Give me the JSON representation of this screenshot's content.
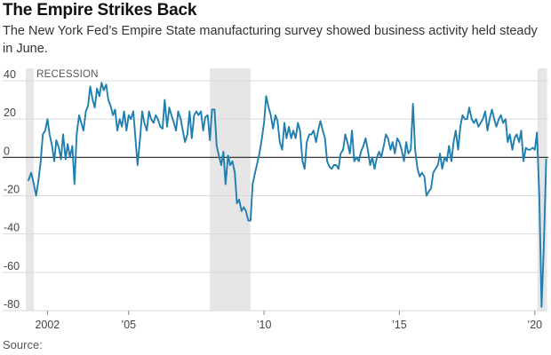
{
  "header": {
    "title": "The Empire Strikes Back",
    "subtitle": "The New York Fed’s Empire State manufacturing survey showed business activity held steady in June."
  },
  "footer": {
    "source_label": "Source:"
  },
  "chart_data": {
    "type": "line",
    "title": "The Empire Strikes Back",
    "subtitle": "The New York Fed’s Empire State manufacturing survey showed business activity held steady in June.",
    "ylim": [
      -80,
      40
    ],
    "xlim": [
      2001.2,
      2020.5
    ],
    "y_ticks": [
      40,
      20,
      0,
      -20,
      -40,
      -60,
      -80
    ],
    "y_tick_labels": [
      "40",
      "20",
      "0",
      "-20",
      "-40",
      "-60",
      "-80"
    ],
    "x_ticks": [
      2002,
      2005,
      2010,
      2015,
      2020
    ],
    "x_tick_labels": [
      "2002",
      "’05",
      "’10",
      "’15",
      "’20"
    ],
    "grid": "horizontal",
    "recession_label": "RECESSION",
    "recessions": [
      [
        2001.2,
        2001.5
      ],
      [
        2008.0,
        2009.5
      ],
      [
        2020.1,
        2020.45
      ]
    ],
    "colors": {
      "line": "#1f7fae",
      "recession": "#e6e6e6",
      "grid": "#d9d9d9",
      "zero_line": "#222222"
    },
    "series": [
      {
        "values": [
          [
            2001.3,
            -12
          ],
          [
            2001.4,
            -8
          ],
          [
            2001.5,
            -14
          ],
          [
            2001.58,
            -20
          ],
          [
            2001.67,
            -12
          ],
          [
            2001.75,
            -2
          ],
          [
            2001.83,
            12
          ],
          [
            2001.92,
            14
          ],
          [
            2002.0,
            20
          ],
          [
            2002.08,
            12
          ],
          [
            2002.17,
            6
          ],
          [
            2002.25,
            -2
          ],
          [
            2002.33,
            9
          ],
          [
            2002.42,
            5
          ],
          [
            2002.5,
            -1
          ],
          [
            2002.58,
            12
          ],
          [
            2002.67,
            -1
          ],
          [
            2002.75,
            7
          ],
          [
            2002.83,
            0
          ],
          [
            2002.92,
            6
          ],
          [
            2003.0,
            -14
          ],
          [
            2003.08,
            12
          ],
          [
            2003.17,
            22
          ],
          [
            2003.25,
            18
          ],
          [
            2003.33,
            14
          ],
          [
            2003.42,
            24
          ],
          [
            2003.5,
            27
          ],
          [
            2003.58,
            37
          ],
          [
            2003.67,
            30
          ],
          [
            2003.75,
            26
          ],
          [
            2003.83,
            36
          ],
          [
            2003.92,
            32
          ],
          [
            2004.0,
            39
          ],
          [
            2004.08,
            35
          ],
          [
            2004.17,
            38
          ],
          [
            2004.25,
            30
          ],
          [
            2004.33,
            27
          ],
          [
            2004.42,
            22
          ],
          [
            2004.5,
            25
          ],
          [
            2004.58,
            14
          ],
          [
            2004.67,
            20
          ],
          [
            2004.75,
            16
          ],
          [
            2004.83,
            24
          ],
          [
            2004.92,
            14
          ],
          [
            2005.0,
            22
          ],
          [
            2005.08,
            20
          ],
          [
            2005.17,
            24
          ],
          [
            2005.25,
            10
          ],
          [
            2005.33,
            -4
          ],
          [
            2005.42,
            10
          ],
          [
            2005.5,
            24
          ],
          [
            2005.58,
            18
          ],
          [
            2005.67,
            14
          ],
          [
            2005.75,
            24
          ],
          [
            2005.83,
            20
          ],
          [
            2005.92,
            18
          ],
          [
            2006.0,
            22
          ],
          [
            2006.08,
            20
          ],
          [
            2006.17,
            16
          ],
          [
            2006.25,
            15
          ],
          [
            2006.33,
            30
          ],
          [
            2006.42,
            16
          ],
          [
            2006.5,
            26
          ],
          [
            2006.58,
            22
          ],
          [
            2006.67,
            18
          ],
          [
            2006.75,
            14
          ],
          [
            2006.83,
            24
          ],
          [
            2006.92,
            20
          ],
          [
            2007.0,
            14
          ],
          [
            2007.08,
            8
          ],
          [
            2007.17,
            12
          ],
          [
            2007.25,
            24
          ],
          [
            2007.33,
            10
          ],
          [
            2007.42,
            22
          ],
          [
            2007.5,
            24
          ],
          [
            2007.58,
            22
          ],
          [
            2007.67,
            24
          ],
          [
            2007.75,
            14
          ],
          [
            2007.83,
            21
          ],
          [
            2007.92,
            22
          ],
          [
            2008.0,
            9
          ],
          [
            2008.08,
            25
          ],
          [
            2008.17,
            25
          ],
          [
            2008.25,
            6
          ],
          [
            2008.33,
            1
          ],
          [
            2008.42,
            -4
          ],
          [
            2008.5,
            3
          ],
          [
            2008.58,
            -14
          ],
          [
            2008.67,
            1
          ],
          [
            2008.75,
            -4
          ],
          [
            2008.83,
            -2
          ],
          [
            2008.92,
            -8
          ],
          [
            2009.0,
            -24
          ],
          [
            2009.08,
            -22
          ],
          [
            2009.17,
            -28
          ],
          [
            2009.25,
            -26
          ],
          [
            2009.33,
            -28
          ],
          [
            2009.42,
            -33
          ],
          [
            2009.5,
            -33
          ],
          [
            2009.58,
            -14
          ],
          [
            2009.67,
            -8
          ],
          [
            2009.75,
            -3
          ],
          [
            2009.83,
            2
          ],
          [
            2009.92,
            10
          ],
          [
            2010.0,
            18
          ],
          [
            2010.08,
            32
          ],
          [
            2010.17,
            26
          ],
          [
            2010.25,
            22
          ],
          [
            2010.33,
            15
          ],
          [
            2010.42,
            22
          ],
          [
            2010.5,
            19
          ],
          [
            2010.58,
            8
          ],
          [
            2010.67,
            4
          ],
          [
            2010.75,
            18
          ],
          [
            2010.83,
            10
          ],
          [
            2010.92,
            16
          ],
          [
            2011.0,
            10
          ],
          [
            2011.08,
            14
          ],
          [
            2011.17,
            10
          ],
          [
            2011.25,
            18
          ],
          [
            2011.33,
            14
          ],
          [
            2011.42,
            -2
          ],
          [
            2011.5,
            -6
          ],
          [
            2011.58,
            8
          ],
          [
            2011.67,
            12
          ],
          [
            2011.75,
            12
          ],
          [
            2011.83,
            14
          ],
          [
            2011.92,
            8
          ],
          [
            2012.0,
            14
          ],
          [
            2012.08,
            19
          ],
          [
            2012.17,
            14
          ],
          [
            2012.25,
            10
          ],
          [
            2012.33,
            -2
          ],
          [
            2012.42,
            -5
          ],
          [
            2012.5,
            -6
          ],
          [
            2012.58,
            -4
          ],
          [
            2012.67,
            -4
          ],
          [
            2012.75,
            -6
          ],
          [
            2012.83,
            2
          ],
          [
            2012.92,
            4
          ],
          [
            2013.0,
            12
          ],
          [
            2013.08,
            8
          ],
          [
            2013.17,
            2
          ],
          [
            2013.25,
            14
          ],
          [
            2013.33,
            -2
          ],
          [
            2013.42,
            0
          ],
          [
            2013.5,
            -2
          ],
          [
            2013.58,
            3
          ],
          [
            2013.67,
            6
          ],
          [
            2013.75,
            10
          ],
          [
            2013.83,
            4
          ],
          [
            2013.92,
            -4
          ],
          [
            2014.0,
            0
          ],
          [
            2014.08,
            -6
          ],
          [
            2014.17,
            0
          ],
          [
            2014.25,
            3
          ],
          [
            2014.33,
            0
          ],
          [
            2014.42,
            6
          ],
          [
            2014.5,
            12
          ],
          [
            2014.58,
            10
          ],
          [
            2014.67,
            4
          ],
          [
            2014.75,
            8
          ],
          [
            2014.83,
            2
          ],
          [
            2014.92,
            10
          ],
          [
            2015.0,
            8
          ],
          [
            2015.08,
            4
          ],
          [
            2015.17,
            -2
          ],
          [
            2015.25,
            8
          ],
          [
            2015.33,
            2
          ],
          [
            2015.42,
            4
          ],
          [
            2015.5,
            28
          ],
          [
            2015.58,
            4
          ],
          [
            2015.67,
            -6
          ],
          [
            2015.75,
            -10
          ],
          [
            2015.83,
            -8
          ],
          [
            2015.92,
            -10
          ],
          [
            2016.0,
            -20
          ],
          [
            2016.08,
            -18
          ],
          [
            2016.17,
            -16
          ],
          [
            2016.25,
            -8
          ],
          [
            2016.33,
            -6
          ],
          [
            2016.42,
            -4
          ],
          [
            2016.5,
            2
          ],
          [
            2016.58,
            -6
          ],
          [
            2016.67,
            0
          ],
          [
            2016.75,
            -2
          ],
          [
            2016.83,
            6
          ],
          [
            2016.92,
            -2
          ],
          [
            2017.0,
            8
          ],
          [
            2017.08,
            14
          ],
          [
            2017.17,
            4
          ],
          [
            2017.25,
            16
          ],
          [
            2017.33,
            22
          ],
          [
            2017.42,
            20
          ],
          [
            2017.5,
            20
          ],
          [
            2017.58,
            26
          ],
          [
            2017.67,
            20
          ],
          [
            2017.75,
            18
          ],
          [
            2017.83,
            20
          ],
          [
            2017.92,
            16
          ],
          [
            2018.0,
            18
          ],
          [
            2018.08,
            20
          ],
          [
            2018.17,
            24
          ],
          [
            2018.25,
            14
          ],
          [
            2018.33,
            20
          ],
          [
            2018.42,
            25
          ],
          [
            2018.5,
            20
          ],
          [
            2018.58,
            16
          ],
          [
            2018.67,
            20
          ],
          [
            2018.75,
            22
          ],
          [
            2018.83,
            18
          ],
          [
            2018.92,
            20
          ],
          [
            2019.0,
            8
          ],
          [
            2019.08,
            12
          ],
          [
            2019.17,
            4
          ],
          [
            2019.25,
            10
          ],
          [
            2019.33,
            12
          ],
          [
            2019.42,
            8
          ],
          [
            2019.5,
            14
          ],
          [
            2019.58,
            -2
          ],
          [
            2019.67,
            5
          ],
          [
            2019.75,
            4
          ],
          [
            2019.83,
            4
          ],
          [
            2019.92,
            5
          ],
          [
            2020.0,
            4
          ],
          [
            2020.08,
            13
          ],
          [
            2020.17,
            -21
          ],
          [
            2020.25,
            -78
          ],
          [
            2020.33,
            -48
          ],
          [
            2020.42,
            -1
          ]
        ]
      }
    ]
  }
}
